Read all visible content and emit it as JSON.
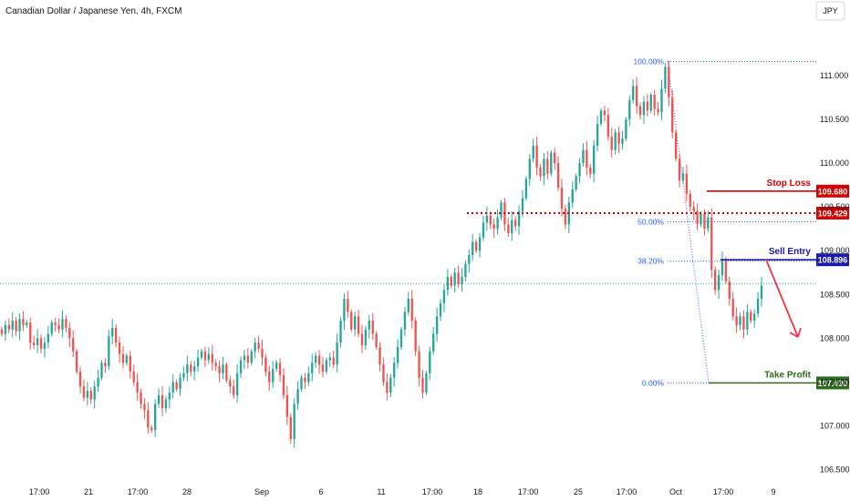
{
  "chart_data": {
    "type": "candlestick",
    "title": "Canadian Dollar / Japanese Yen, 4h, FXCM",
    "currency_button": "JPY",
    "ylim": [
      106.35,
      111.55
    ],
    "y_ticks": [
      "106.500",
      "107.000",
      "107.500",
      "108.000",
      "108.500",
      "109.000",
      "109.500",
      "110.000",
      "110.500",
      "111.000"
    ],
    "x_ticks": [
      "17:00",
      "21",
      "17:00",
      "28",
      "Sep",
      "6",
      "11",
      "17:00",
      "18",
      "17:00",
      "25",
      "17:00",
      "Oct",
      "17:00",
      "9"
    ],
    "current_price_line": 108.62,
    "fibonacci": [
      {
        "label": "100.00%",
        "value": 111.16
      },
      {
        "label": "50.00%",
        "value": 109.33
      },
      {
        "label": "38.20%",
        "value": 108.88
      },
      {
        "label": "0.00%",
        "value": 107.49
      }
    ],
    "levels": [
      {
        "name": "Stop Loss",
        "value": 109.68,
        "badge": "109.680",
        "color": "#d50000",
        "style": "solid"
      },
      {
        "name": "",
        "value": 109.429,
        "badge": "109.429",
        "color": "#d50000",
        "style": "dotted"
      },
      {
        "name": "Sell Entry",
        "value": 108.896,
        "badge": "108.896",
        "color": "#1a1aa6",
        "style": "solid"
      },
      {
        "name": "Take Profit",
        "value": 107.49,
        "badge": "107.490",
        "color": "#2e6b1f",
        "style": "solid"
      }
    ],
    "colors": {
      "up": "#26a69a",
      "down": "#ef5350",
      "fib": "#2962ff",
      "arrow": "#f23645"
    },
    "candles_close": [
      108.05,
      108.15,
      108.1,
      108.2,
      108.08,
      108.22,
      108.15,
      108.18,
      107.95,
      107.92,
      108.0,
      107.88,
      107.95,
      108.05,
      108.18,
      108.15,
      108.1,
      108.22,
      108.12,
      108.0,
      107.85,
      107.62,
      107.45,
      107.32,
      107.4,
      107.3,
      107.45,
      107.55,
      107.72,
      107.68,
      108.02,
      108.12,
      107.95,
      107.82,
      107.72,
      107.8,
      107.62,
      107.5,
      107.38,
      107.25,
      107.18,
      106.98,
      106.95,
      107.25,
      107.35,
      107.2,
      107.3,
      107.38,
      107.5,
      107.42,
      107.55,
      107.6,
      107.7,
      107.62,
      107.68,
      107.78,
      107.85,
      107.75,
      107.82,
      107.72,
      107.68,
      107.6,
      107.7,
      107.52,
      107.45,
      107.35,
      107.6,
      107.75,
      107.8,
      107.72,
      107.85,
      107.95,
      107.88,
      107.78,
      107.62,
      107.5,
      107.65,
      107.72,
      107.58,
      107.35,
      107.1,
      106.85,
      107.25,
      107.42,
      107.55,
      107.5,
      107.6,
      107.72,
      107.8,
      107.7,
      107.62,
      107.75,
      107.78,
      107.7,
      107.95,
      108.2,
      108.45,
      108.3,
      108.1,
      108.25,
      108.05,
      107.92,
      108.1,
      108.2,
      108.05,
      107.9,
      107.7,
      107.5,
      107.38,
      107.55,
      107.72,
      107.9,
      108.1,
      108.3,
      108.45,
      108.2,
      107.85,
      107.55,
      107.38,
      107.6,
      107.85,
      108.05,
      108.25,
      108.4,
      108.55,
      108.7,
      108.6,
      108.75,
      108.62,
      108.7,
      108.85,
      108.95,
      109.1,
      109.0,
      109.15,
      109.32,
      109.4,
      109.3,
      109.25,
      109.38,
      109.55,
      109.3,
      109.2,
      109.35,
      109.28,
      109.45,
      109.6,
      109.82,
      110.05,
      110.2,
      109.95,
      109.85,
      110.05,
      109.88,
      110.12,
      110.0,
      109.72,
      109.48,
      109.3,
      109.55,
      109.7,
      109.85,
      110.0,
      110.15,
      109.95,
      109.88,
      110.2,
      110.45,
      110.6,
      110.55,
      110.3,
      110.15,
      110.35,
      110.22,
      110.28,
      110.5,
      110.72,
      110.88,
      110.65,
      110.55,
      110.7,
      110.6,
      110.78,
      110.62,
      110.58,
      110.85,
      111.1,
      110.75,
      110.35,
      110.05,
      109.8,
      109.88,
      109.65,
      109.5,
      109.45,
      109.3,
      109.42,
      109.25,
      109.38,
      108.78,
      108.55,
      108.72,
      108.9,
      108.65,
      108.45,
      108.25,
      108.15,
      108.25,
      108.1,
      108.3,
      108.2,
      108.28,
      108.45,
      108.6
    ]
  }
}
